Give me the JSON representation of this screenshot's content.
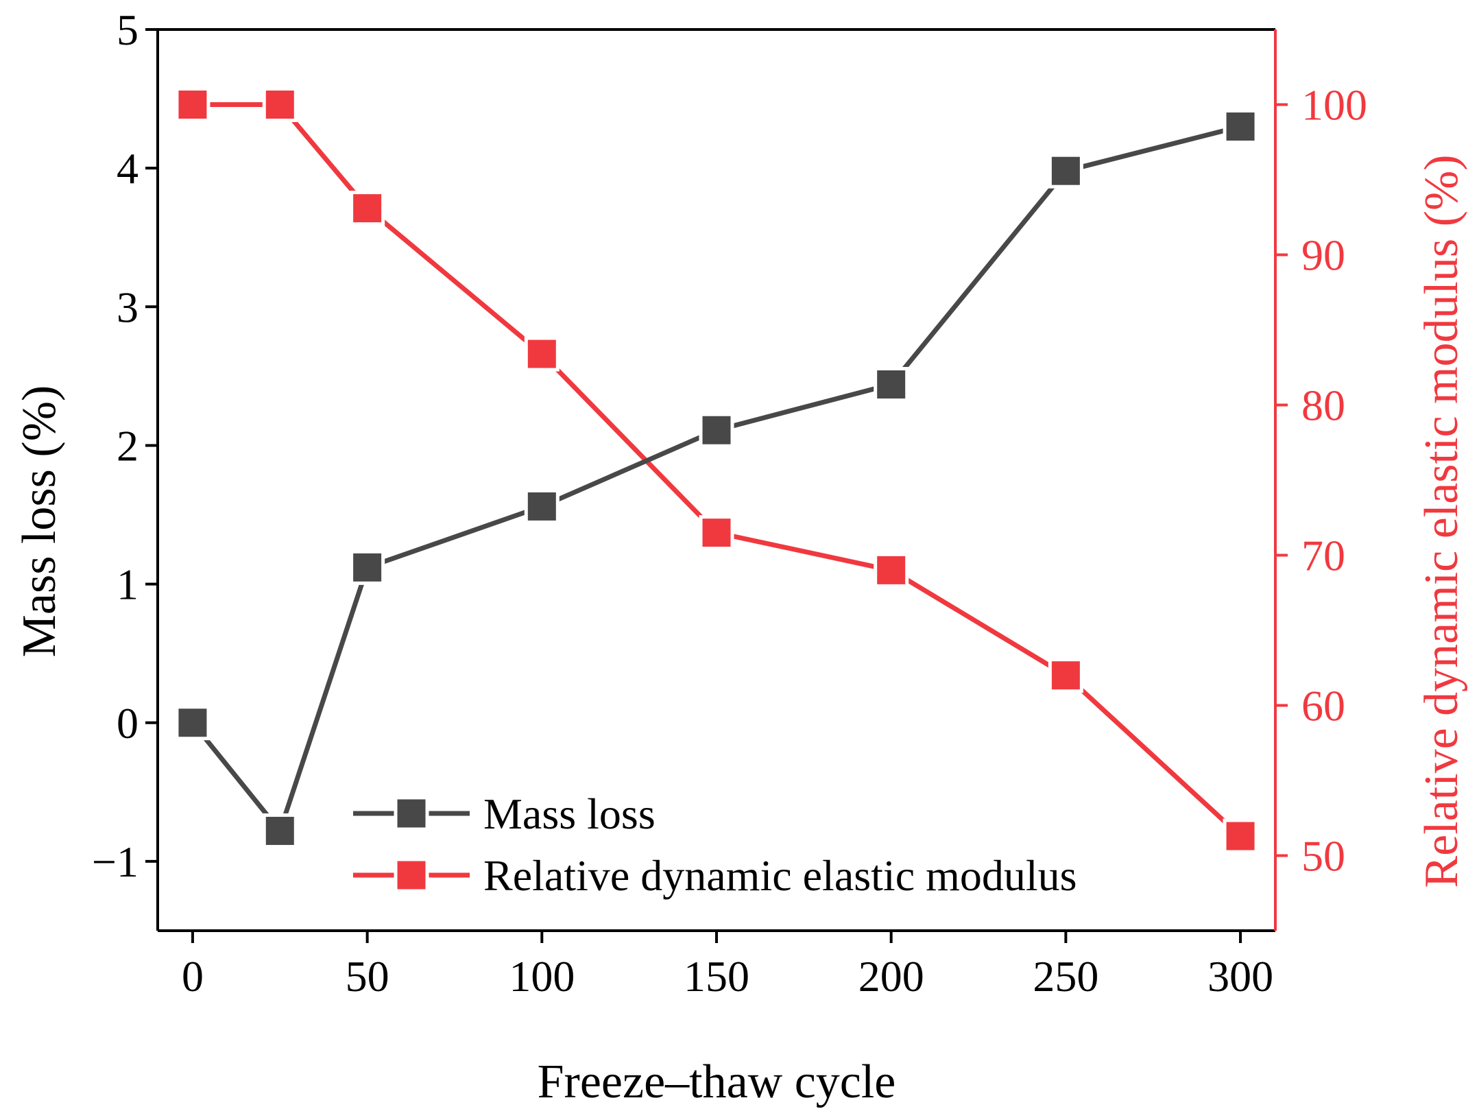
{
  "chart_data": {
    "type": "line",
    "title": "",
    "xlabel": "Freeze–thaw cycle",
    "ylabel": "Mass loss (%)",
    "y2label": "Relative dynamic elastic modulus (%)",
    "x": [
      0,
      25,
      50,
      100,
      150,
      200,
      250,
      300
    ],
    "xlim": [
      -10,
      310
    ],
    "ylim": [
      -1.5,
      5
    ],
    "y2lim": [
      45,
      105
    ],
    "xticks": [
      0,
      50,
      100,
      150,
      200,
      250,
      300
    ],
    "xtick_labels": [
      "0",
      "50",
      "100",
      "150",
      "200",
      "250",
      "300"
    ],
    "yticks": [
      -1,
      0,
      1,
      2,
      3,
      4,
      5
    ],
    "ytick_labels": [
      "−1",
      "0",
      "1",
      "2",
      "3",
      "4",
      "5"
    ],
    "y2ticks": [
      50,
      60,
      70,
      80,
      90,
      100
    ],
    "y2tick_labels": [
      "50",
      "60",
      "70",
      "80",
      "90",
      "100"
    ],
    "grid": false,
    "legend_position": "bottom-center",
    "series": [
      {
        "name": "Mass loss",
        "axis": "left",
        "marker": "square",
        "color": "#484848",
        "values": [
          0,
          -0.78,
          1.12,
          1.56,
          2.11,
          2.44,
          3.98,
          4.3
        ]
      },
      {
        "name": "Relative dynamic elastic modulus",
        "axis": "right",
        "marker": "square",
        "color": "#f0393f",
        "values": [
          100,
          100,
          93.1,
          83.4,
          71.5,
          69,
          62,
          51.3
        ]
      }
    ]
  }
}
